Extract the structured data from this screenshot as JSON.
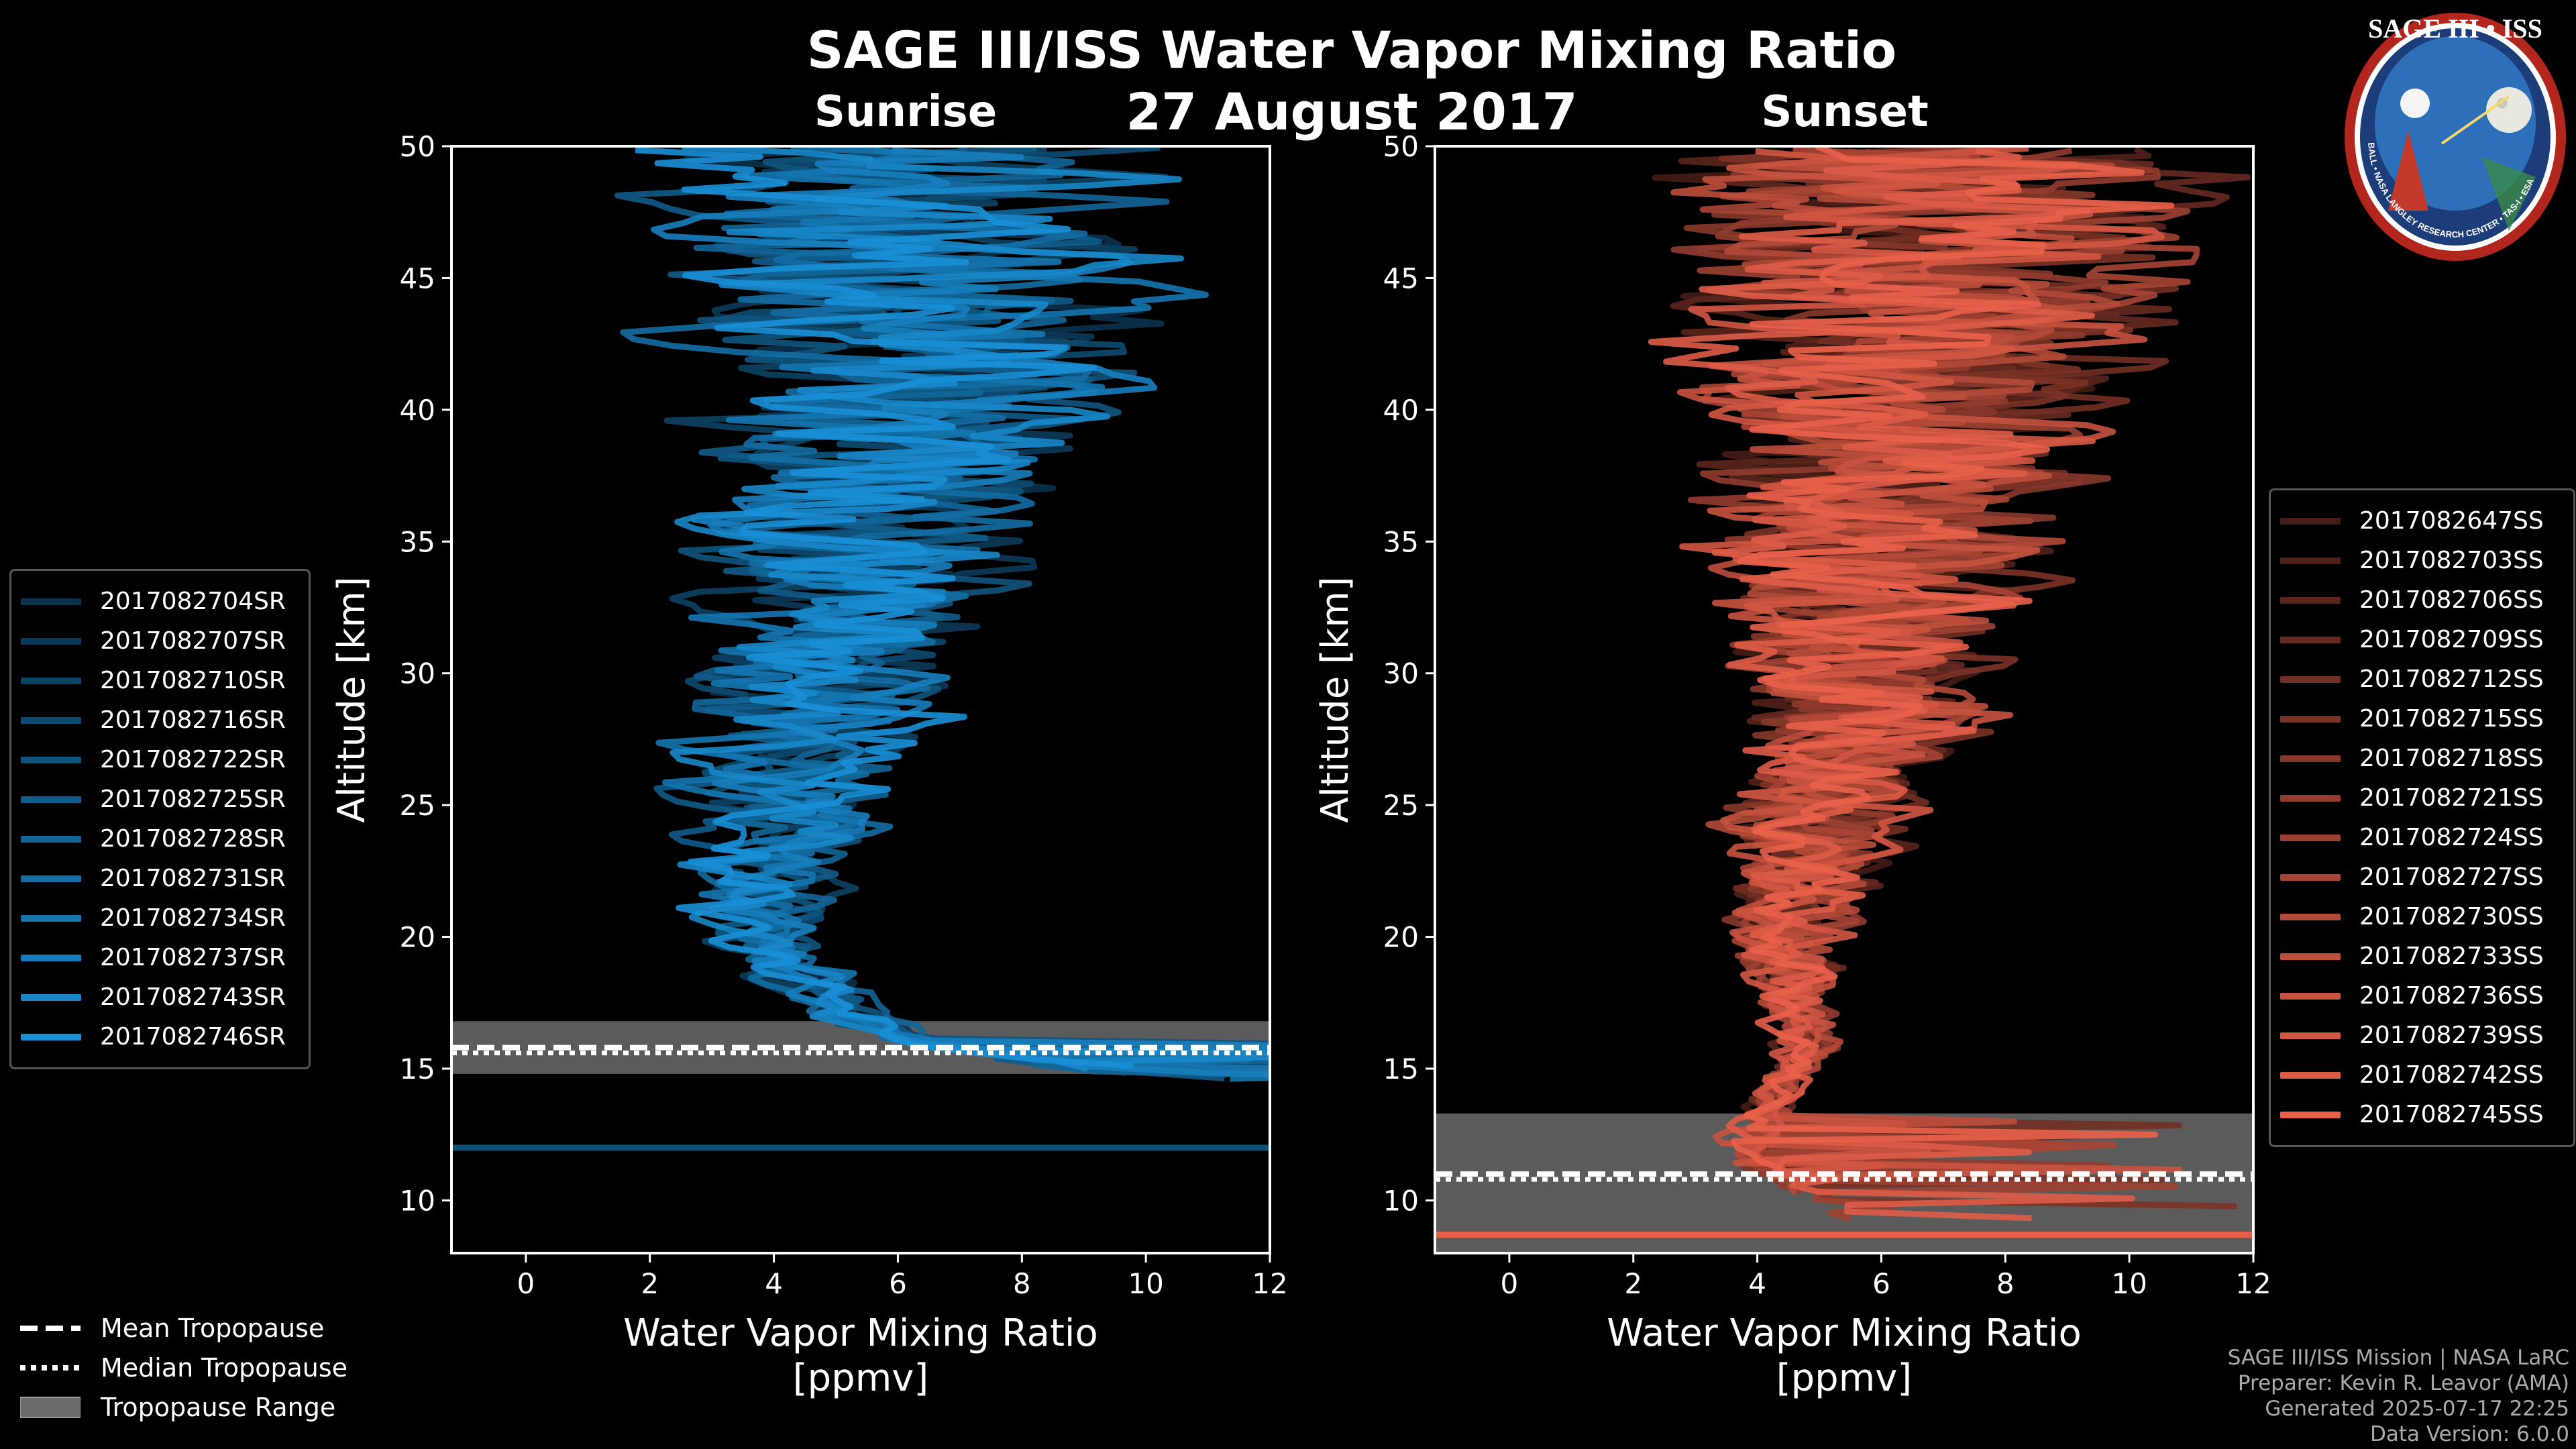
{
  "title": "SAGE III/ISS Water Vapor Mixing Ratio",
  "date": "27 August 2017",
  "footer": {
    "line1": "SAGE III/ISS Mission | NASA LaRC",
    "line2": "Preparer: Kevin R. Leavor (AMA)",
    "line3": "Generated 2025-07-17 22:25",
    "line4": "Data Version: 6.0.0"
  },
  "logo": {
    "title": "SAGE III • ISS",
    "ring_text": "BALL • NASA LANGLEY RESEARCH CENTER • TAS-I • ESA"
  },
  "colors": {
    "sunrise": "#1a8fd6",
    "sunset": "#e8604a",
    "trop_range": "#6b6b6b"
  },
  "tropopause_legend": {
    "mean": "Mean Tropopause",
    "median": "Median Tropopause",
    "range": "Tropopause Range"
  },
  "chart_data": [
    {
      "type": "line",
      "panel_title": "Sunrise",
      "xlabel": "Water Vapor Mixing Ratio",
      "xlabel_units": "[ppmv]",
      "ylabel": "Altitude [km]",
      "xlim": [
        -1.2,
        12
      ],
      "ylim": [
        8,
        50
      ],
      "xticks": [
        0,
        2,
        4,
        6,
        8,
        10,
        12
      ],
      "yticks": [
        10,
        15,
        20,
        25,
        30,
        35,
        40,
        45,
        50
      ],
      "legend_position": "left-outside",
      "tropopause": {
        "mean": 15.8,
        "median": 15.8,
        "range": [
          14.8,
          16.8
        ]
      },
      "mean_profile": {
        "altitude": [
          12,
          14.5,
          15,
          16,
          17,
          18,
          19,
          20,
          21,
          22,
          23,
          24,
          25,
          26,
          27,
          28,
          29,
          30,
          31,
          32,
          33,
          34,
          35,
          36,
          37,
          38,
          39,
          40,
          41,
          42,
          43,
          44,
          45,
          46,
          47,
          48,
          49,
          50
        ],
        "value": [
          12,
          12,
          9,
          6.5,
          5.2,
          4.8,
          4.2,
          3.9,
          3.7,
          3.8,
          3.9,
          4.1,
          4.3,
          4.4,
          4.5,
          4.6,
          4.8,
          5.0,
          5.1,
          5.2,
          5.3,
          5.4,
          5.5,
          5.6,
          5.7,
          5.8,
          5.9,
          6.0,
          6.1,
          6.2,
          6.2,
          6.3,
          6.3,
          6.3,
          6.4,
          6.4,
          6.4,
          6.4
        ]
      },
      "series": [
        {
          "name": "2017082704SR"
        },
        {
          "name": "2017082707SR"
        },
        {
          "name": "2017082710SR"
        },
        {
          "name": "2017082716SR"
        },
        {
          "name": "2017082722SR"
        },
        {
          "name": "2017082725SR"
        },
        {
          "name": "2017082728SR"
        },
        {
          "name": "2017082731SR"
        },
        {
          "name": "2017082734SR"
        },
        {
          "name": "2017082737SR"
        },
        {
          "name": "2017082743SR"
        },
        {
          "name": "2017082746SR"
        }
      ]
    },
    {
      "type": "line",
      "panel_title": "Sunset",
      "xlabel": "Water Vapor Mixing Ratio",
      "xlabel_units": "[ppmv]",
      "ylabel": "Altitude [km]",
      "xlim": [
        -1.2,
        12
      ],
      "ylim": [
        8,
        50
      ],
      "xticks": [
        0,
        2,
        4,
        6,
        8,
        10,
        12
      ],
      "yticks": [
        10,
        15,
        20,
        25,
        30,
        35,
        40,
        45,
        50
      ],
      "legend_position": "right-outside",
      "tropopause": {
        "mean": 11.0,
        "median": 11.0,
        "range": [
          8,
          13.3
        ]
      },
      "mean_profile": {
        "altitude": [
          8.7,
          9.5,
          10.5,
          11.5,
          12.5,
          13.5,
          14.5,
          15,
          16,
          17,
          18,
          19,
          20,
          21,
          22,
          23,
          24,
          25,
          26,
          27,
          28,
          29,
          30,
          31,
          32,
          33,
          34,
          35,
          36,
          37,
          38,
          39,
          40,
          41,
          42,
          43,
          44,
          45,
          46,
          47,
          48,
          49,
          50
        ],
        "value": [
          5.5,
          5.2,
          4.6,
          4.0,
          3.9,
          4.1,
          4.4,
          4.6,
          4.8,
          4.7,
          4.6,
          4.6,
          4.7,
          4.8,
          4.9,
          5.0,
          5.0,
          5.1,
          5.2,
          5.3,
          5.4,
          5.5,
          5.5,
          5.6,
          5.7,
          5.8,
          5.9,
          6.0,
          6.1,
          6.2,
          6.3,
          6.3,
          6.4,
          6.5,
          6.5,
          6.6,
          6.6,
          6.6,
          6.7,
          6.7,
          6.7,
          6.7,
          6.7
        ]
      },
      "series": [
        {
          "name": "2017082647SS"
        },
        {
          "name": "2017082703SS"
        },
        {
          "name": "2017082706SS"
        },
        {
          "name": "2017082709SS"
        },
        {
          "name": "2017082712SS"
        },
        {
          "name": "2017082715SS"
        },
        {
          "name": "2017082718SS"
        },
        {
          "name": "2017082721SS"
        },
        {
          "name": "2017082724SS"
        },
        {
          "name": "2017082727SS"
        },
        {
          "name": "2017082730SS"
        },
        {
          "name": "2017082733SS"
        },
        {
          "name": "2017082736SS"
        },
        {
          "name": "2017082739SS"
        },
        {
          "name": "2017082742SS"
        },
        {
          "name": "2017082745SS"
        }
      ]
    }
  ]
}
